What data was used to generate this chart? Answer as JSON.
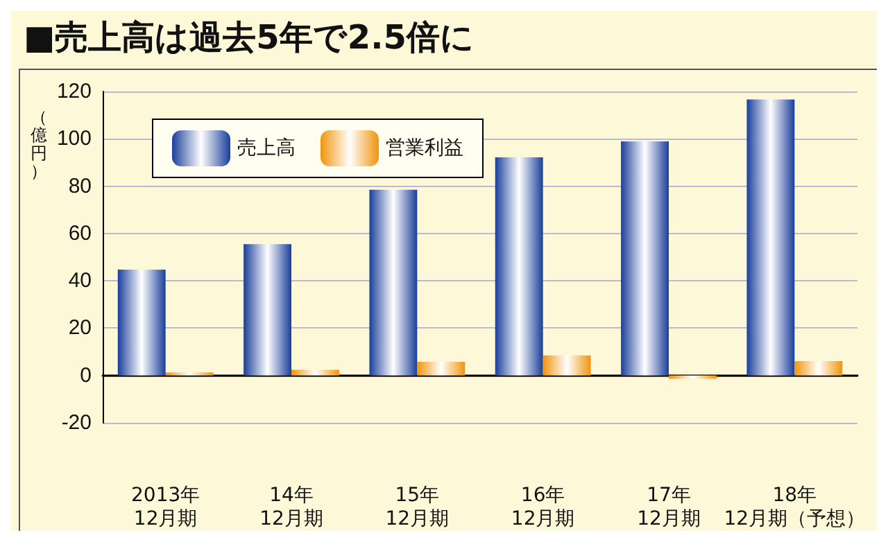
{
  "chart_data": {
    "type": "bar",
    "title": "■売上高は過去5年で2.5倍に",
    "ylabel": "（億円）",
    "categories": [
      "2013年\n12月期",
      "14年\n12月期",
      "15年\n12月期",
      "16年\n12月期",
      "17年\n12月期",
      "18年\n12月期（予想）"
    ],
    "series": [
      {
        "name": "売上高",
        "color": "#1a3f9a",
        "values": [
          44.7,
          55.5,
          78.5,
          92.2,
          98.9,
          116.6
        ]
      },
      {
        "name": "営業利益",
        "color": "#f0940c",
        "values": [
          1.3,
          2.4,
          5.8,
          8.5,
          -1.4,
          6.1
        ]
      }
    ],
    "ylim": [
      -20,
      120
    ],
    "yticks": [
      -20,
      0,
      20,
      40,
      60,
      80,
      100,
      120
    ],
    "grid": "y",
    "legend": "top left"
  }
}
